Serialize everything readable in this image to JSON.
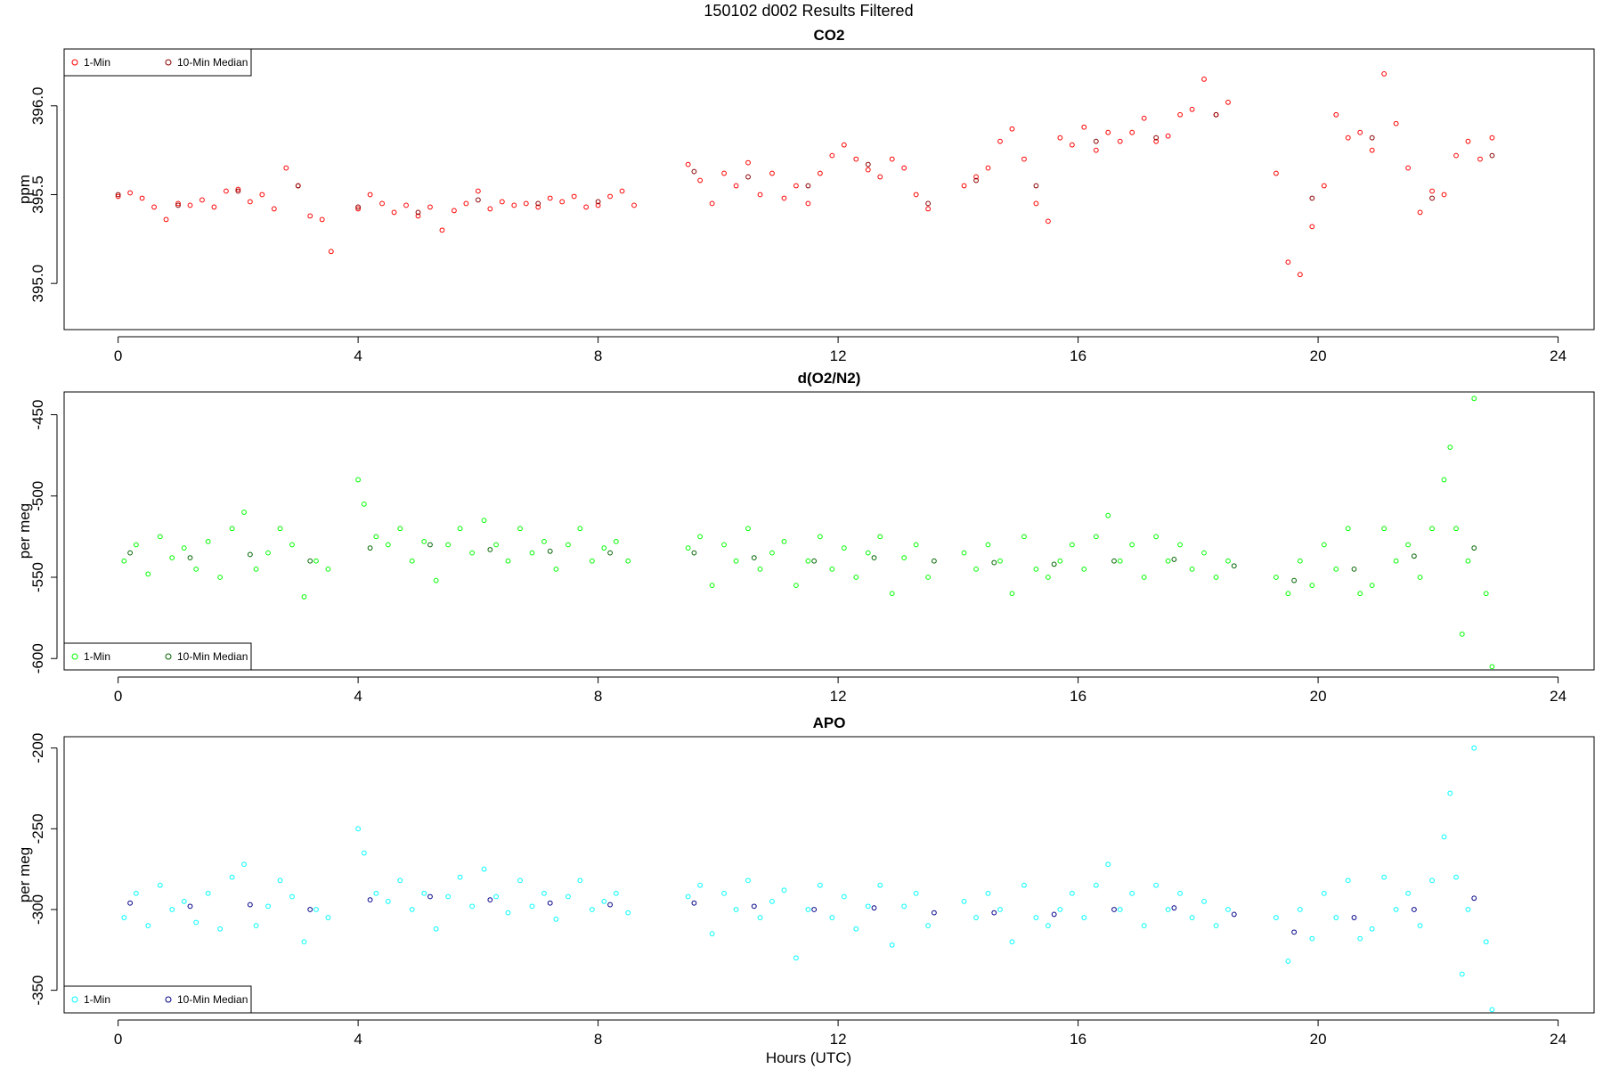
{
  "title": "150102   d002   Results Filtered",
  "x_axis_label": "Hours (UTC)",
  "colors": {
    "co2_one_min": "#ff0000",
    "co2_median": "#8b0000",
    "o2_one_min": "#00ff00",
    "o2_median": "#006400",
    "apo_one_min": "#00ffff",
    "apo_median": "#00008b"
  },
  "chart_data": [
    {
      "type": "scatter",
      "title": "CO2",
      "xlabel": "",
      "ylabel": "ppm",
      "xlim": [
        -0.9,
        24.6
      ],
      "ylim": [
        394.74,
        396.32
      ],
      "xticks": [
        0,
        4,
        8,
        12,
        16,
        20,
        24
      ],
      "yticks": [
        395.0,
        395.5,
        396.0
      ],
      "ytick_labels": [
        "395.0",
        "395.5",
        "396.0"
      ],
      "legend": {
        "position": "top-left",
        "entries": [
          "1-Min",
          "10-Min Median"
        ]
      },
      "series": [
        {
          "name": "1-Min",
          "color": "#ff0000",
          "x": [
            0.0,
            0.2,
            0.4,
            0.6,
            0.8,
            1.0,
            1.2,
            1.4,
            1.6,
            1.8,
            2.0,
            2.2,
            2.4,
            2.6,
            2.8,
            3.0,
            3.2,
            3.4,
            3.55,
            4.0,
            4.2,
            4.4,
            4.6,
            4.8,
            5.0,
            5.2,
            5.4,
            5.6,
            5.8,
            6.0,
            6.2,
            6.4,
            6.6,
            6.8,
            7.0,
            7.2,
            7.4,
            7.6,
            7.8,
            8.0,
            8.2,
            8.4,
            8.6,
            9.5,
            9.7,
            9.9,
            10.1,
            10.3,
            10.5,
            10.7,
            10.9,
            11.1,
            11.3,
            11.5,
            11.7,
            11.9,
            12.1,
            12.3,
            12.5,
            12.7,
            12.9,
            13.1,
            13.3,
            13.5,
            14.1,
            14.3,
            14.5,
            14.7,
            14.9,
            15.1,
            15.3,
            15.5,
            15.7,
            15.9,
            16.1,
            16.3,
            16.5,
            16.7,
            16.9,
            17.1,
            17.3,
            17.5,
            17.7,
            17.9,
            18.1,
            18.3,
            18.5,
            19.3,
            19.5,
            19.7,
            19.9,
            20.1,
            20.3,
            20.5,
            20.7,
            20.9,
            21.1,
            21.3,
            21.5,
            21.7,
            21.9,
            22.1,
            22.3,
            22.5,
            22.7,
            22.9
          ],
          "y": [
            395.49,
            395.51,
            395.48,
            395.43,
            395.36,
            395.45,
            395.44,
            395.47,
            395.43,
            395.52,
            395.53,
            395.46,
            395.5,
            395.42,
            395.65,
            395.55,
            395.38,
            395.36,
            395.18,
            395.42,
            395.5,
            395.45,
            395.4,
            395.44,
            395.38,
            395.43,
            395.3,
            395.41,
            395.45,
            395.52,
            395.42,
            395.46,
            395.44,
            395.45,
            395.43,
            395.48,
            395.46,
            395.49,
            395.43,
            395.44,
            395.49,
            395.52,
            395.44,
            395.67,
            395.58,
            395.45,
            395.62,
            395.55,
            395.68,
            395.5,
            395.62,
            395.48,
            395.55,
            395.45,
            395.62,
            395.72,
            395.78,
            395.7,
            395.64,
            395.6,
            395.7,
            395.65,
            395.5,
            395.42,
            395.55,
            395.6,
            395.65,
            395.8,
            395.87,
            395.7,
            395.45,
            395.35,
            395.82,
            395.78,
            395.88,
            395.75,
            395.85,
            395.8,
            395.85,
            395.93,
            395.8,
            395.83,
            395.95,
            395.98,
            396.15,
            395.95,
            396.02,
            395.62,
            395.12,
            395.05,
            395.32,
            395.55,
            395.95,
            395.82,
            395.85,
            395.75,
            396.18,
            395.9,
            395.65,
            395.4,
            395.52,
            395.5,
            395.72,
            395.8,
            395.7,
            395.82
          ]
        },
        {
          "name": "10-Min Median",
          "color": "#8b0000",
          "x": [
            0.0,
            1.0,
            2.0,
            3.0,
            4.0,
            5.0,
            6.0,
            7.0,
            8.0,
            9.6,
            10.5,
            11.5,
            12.5,
            13.5,
            14.3,
            15.3,
            16.3,
            17.3,
            18.3,
            19.9,
            20.9,
            21.9,
            22.9
          ],
          "y": [
            395.5,
            395.44,
            395.52,
            395.55,
            395.43,
            395.4,
            395.47,
            395.45,
            395.46,
            395.63,
            395.6,
            395.55,
            395.67,
            395.45,
            395.58,
            395.55,
            395.8,
            395.82,
            395.95,
            395.48,
            395.82,
            395.48,
            395.72
          ]
        }
      ]
    },
    {
      "type": "scatter",
      "title": "d(O2/N2)",
      "xlabel": "",
      "ylabel": "per meg",
      "xlim": [
        -0.9,
        24.6
      ],
      "ylim": [
        -607,
        -436
      ],
      "xticks": [
        0,
        4,
        8,
        12,
        16,
        20,
        24
      ],
      "yticks": [
        -600,
        -550,
        -500,
        -450
      ],
      "ytick_labels": [
        "-600",
        "-550",
        "-500",
        "-450"
      ],
      "legend": {
        "position": "bottom-left",
        "entries": [
          "1-Min",
          "10-Min Median"
        ]
      },
      "series": [
        {
          "name": "1-Min",
          "color": "#00ff00",
          "x": [
            0.1,
            0.3,
            0.5,
            0.7,
            0.9,
            1.1,
            1.3,
            1.5,
            1.7,
            1.9,
            2.1,
            2.3,
            2.5,
            2.7,
            2.9,
            3.1,
            3.3,
            3.5,
            4.0,
            4.1,
            4.3,
            4.5,
            4.7,
            4.9,
            5.1,
            5.3,
            5.5,
            5.7,
            5.9,
            6.1,
            6.3,
            6.5,
            6.7,
            6.9,
            7.1,
            7.3,
            7.5,
            7.7,
            7.9,
            8.1,
            8.3,
            8.5,
            9.5,
            9.7,
            9.9,
            10.1,
            10.3,
            10.5,
            10.7,
            10.9,
            11.1,
            11.3,
            11.5,
            11.7,
            11.9,
            12.1,
            12.3,
            12.5,
            12.7,
            12.9,
            13.1,
            13.3,
            13.5,
            14.1,
            14.3,
            14.5,
            14.7,
            14.9,
            15.1,
            15.3,
            15.5,
            15.7,
            15.9,
            16.1,
            16.3,
            16.5,
            16.7,
            16.9,
            17.1,
            17.3,
            17.5,
            17.7,
            17.9,
            18.1,
            18.3,
            18.5,
            19.3,
            19.5,
            19.7,
            19.9,
            20.1,
            20.3,
            20.5,
            20.7,
            20.9,
            21.1,
            21.3,
            21.5,
            21.7,
            21.9,
            22.1,
            22.2,
            22.3,
            22.4,
            22.5,
            22.6,
            22.8,
            22.9
          ],
          "y": [
            -540,
            -530,
            -548,
            -525,
            -538,
            -532,
            -545,
            -528,
            -550,
            -520,
            -510,
            -545,
            -535,
            -520,
            -530,
            -562,
            -540,
            -545,
            -490,
            -505,
            -525,
            -530,
            -520,
            -540,
            -528,
            -552,
            -530,
            -520,
            -535,
            -515,
            -530,
            -540,
            -520,
            -535,
            -528,
            -545,
            -530,
            -520,
            -540,
            -532,
            -528,
            -540,
            -532,
            -525,
            -555,
            -530,
            -540,
            -520,
            -545,
            -535,
            -528,
            -555,
            -540,
            -525,
            -545,
            -532,
            -550,
            -535,
            -525,
            -560,
            -538,
            -530,
            -550,
            -535,
            -545,
            -530,
            -540,
            -560,
            -525,
            -545,
            -550,
            -540,
            -530,
            -545,
            -525,
            -512,
            -540,
            -530,
            -550,
            -525,
            -540,
            -530,
            -545,
            -535,
            -550,
            -540,
            -550,
            -560,
            -540,
            -555,
            -530,
            -545,
            -520,
            -560,
            -555,
            -520,
            -540,
            -530,
            -550,
            -520,
            -490,
            -470,
            -520,
            -585,
            -540,
            -440,
            -560,
            -605
          ]
        },
        {
          "name": "10-Min Median",
          "color": "#006400",
          "x": [
            0.2,
            1.2,
            2.2,
            3.2,
            4.2,
            5.2,
            6.2,
            7.2,
            8.2,
            9.6,
            10.6,
            11.6,
            12.6,
            13.6,
            14.6,
            15.6,
            16.6,
            17.6,
            18.6,
            19.6,
            20.6,
            21.6,
            22.6
          ],
          "y": [
            -535,
            -538,
            -536,
            -540,
            -532,
            -530,
            -533,
            -534,
            -535,
            -535,
            -538,
            -540,
            -538,
            -540,
            -541,
            -542,
            -540,
            -539,
            -543,
            -552,
            -545,
            -537,
            -532
          ]
        }
      ]
    },
    {
      "type": "scatter",
      "title": "APO",
      "xlabel": "Hours (UTC)",
      "ylabel": "per meg",
      "xlim": [
        -0.9,
        24.6
      ],
      "ylim": [
        -364,
        -193
      ],
      "xticks": [
        0,
        4,
        8,
        12,
        16,
        20,
        24
      ],
      "yticks": [
        -350,
        -300,
        -250,
        -200
      ],
      "ytick_labels": [
        "-350",
        "-300",
        "-250",
        "-200"
      ],
      "legend": {
        "position": "bottom-left",
        "entries": [
          "1-Min",
          "10-Min Median"
        ]
      },
      "series": [
        {
          "name": "1-Min",
          "color": "#00ffff",
          "x": [
            0.1,
            0.3,
            0.5,
            0.7,
            0.9,
            1.1,
            1.3,
            1.5,
            1.7,
            1.9,
            2.1,
            2.3,
            2.5,
            2.7,
            2.9,
            3.1,
            3.3,
            3.5,
            4.0,
            4.1,
            4.3,
            4.5,
            4.7,
            4.9,
            5.1,
            5.3,
            5.5,
            5.7,
            5.9,
            6.1,
            6.3,
            6.5,
            6.7,
            6.9,
            7.1,
            7.3,
            7.5,
            7.7,
            7.9,
            8.1,
            8.3,
            8.5,
            9.5,
            9.7,
            9.9,
            10.1,
            10.3,
            10.5,
            10.7,
            10.9,
            11.1,
            11.3,
            11.5,
            11.7,
            11.9,
            12.1,
            12.3,
            12.5,
            12.7,
            12.9,
            13.1,
            13.3,
            13.5,
            14.1,
            14.3,
            14.5,
            14.7,
            14.9,
            15.1,
            15.3,
            15.5,
            15.7,
            15.9,
            16.1,
            16.3,
            16.5,
            16.7,
            16.9,
            17.1,
            17.3,
            17.5,
            17.7,
            17.9,
            18.1,
            18.3,
            18.5,
            19.3,
            19.5,
            19.7,
            19.9,
            20.1,
            20.3,
            20.5,
            20.7,
            20.9,
            21.1,
            21.3,
            21.5,
            21.7,
            21.9,
            22.1,
            22.2,
            22.3,
            22.4,
            22.5,
            22.6,
            22.8,
            22.9
          ],
          "y": [
            -305,
            -290,
            -310,
            -285,
            -300,
            -295,
            -308,
            -290,
            -312,
            -280,
            -272,
            -310,
            -298,
            -282,
            -292,
            -320,
            -300,
            -305,
            -250,
            -265,
            -290,
            -295,
            -282,
            -300,
            -290,
            -312,
            -292,
            -280,
            -298,
            -275,
            -292,
            -302,
            -282,
            -298,
            -290,
            -306,
            -292,
            -282,
            -300,
            -295,
            -290,
            -302,
            -292,
            -285,
            -315,
            -290,
            -300,
            -282,
            -305,
            -295,
            -288,
            -330,
            -300,
            -285,
            -305,
            -292,
            -312,
            -298,
            -285,
            -322,
            -298,
            -290,
            -310,
            -295,
            -305,
            -290,
            -300,
            -320,
            -285,
            -305,
            -310,
            -300,
            -290,
            -305,
            -285,
            -272,
            -300,
            -290,
            -310,
            -285,
            -300,
            -290,
            -305,
            -295,
            -310,
            -300,
            -305,
            -332,
            -300,
            -318,
            -290,
            -305,
            -282,
            -318,
            -312,
            -280,
            -300,
            -290,
            -310,
            -282,
            -255,
            -228,
            -280,
            -340,
            -300,
            -200,
            -320,
            -362
          ]
        },
        {
          "name": "10-Min Median",
          "color": "#00008b",
          "x": [
            0.2,
            1.2,
            2.2,
            3.2,
            4.2,
            5.2,
            6.2,
            7.2,
            8.2,
            9.6,
            10.6,
            11.6,
            12.6,
            13.6,
            14.6,
            15.6,
            16.6,
            17.6,
            18.6,
            19.6,
            20.6,
            21.6,
            22.6
          ],
          "y": [
            -296,
            -298,
            -297,
            -300,
            -294,
            -292,
            -294,
            -296,
            -297,
            -296,
            -298,
            -300,
            -299,
            -302,
            -302,
            -303,
            -300,
            -299,
            -303,
            -314,
            -305,
            -300,
            -293
          ]
        }
      ]
    }
  ]
}
